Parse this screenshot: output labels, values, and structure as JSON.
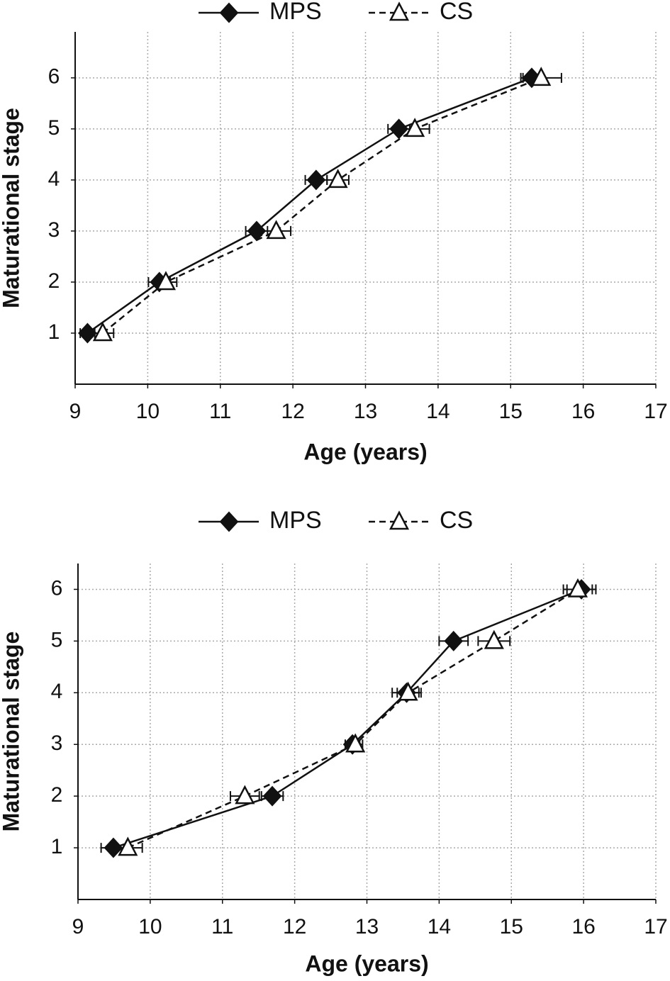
{
  "chart_data": [
    {
      "type": "line",
      "x_label": "Age (years)",
      "y_label": "Maturational stage",
      "xlim": [
        9,
        17
      ],
      "xticks": [
        9,
        10,
        11,
        12,
        13,
        14,
        15,
        16,
        17
      ],
      "ylim": [
        0,
        6.9
      ],
      "yticks": [
        1,
        2,
        3,
        4,
        5,
        6
      ],
      "grid": true,
      "series": [
        {
          "name": "MPS",
          "color": "#111111",
          "line_style": "solid",
          "marker": "diamond",
          "x": [
            9.17,
            10.16,
            11.5,
            12.32,
            13.46,
            15.29
          ],
          "xerr": [
            0.1,
            0.15,
            0.15,
            0.15,
            0.15,
            0.12
          ],
          "values": [
            1,
            2,
            3,
            4,
            5,
            6
          ]
        },
        {
          "name": "CS",
          "color": "#111111",
          "line_style": "dashed",
          "marker": "triangle",
          "x": [
            9.38,
            10.25,
            11.77,
            12.62,
            13.68,
            15.42
          ],
          "xerr": [
            0.15,
            0.15,
            0.2,
            0.15,
            0.2,
            0.28
          ],
          "values": [
            1,
            2,
            3,
            4,
            5,
            6
          ]
        }
      ]
    },
    {
      "type": "line",
      "x_label": "Age (years)",
      "y_label": "Maturational stage",
      "xlim": [
        9,
        17
      ],
      "xticks": [
        9,
        10,
        11,
        12,
        13,
        14,
        15,
        16,
        17
      ],
      "ylim": [
        0,
        6.5
      ],
      "yticks": [
        1,
        2,
        3,
        4,
        5,
        6
      ],
      "grid": true,
      "series": [
        {
          "name": "MPS",
          "color": "#111111",
          "line_style": "solid",
          "marker": "diamond",
          "x": [
            9.49,
            11.69,
            12.8,
            13.55,
            14.2,
            15.97
          ],
          "xerr": [
            0.17,
            0.15,
            0.1,
            0.2,
            0.2,
            0.2
          ],
          "values": [
            1,
            2,
            3,
            4,
            5,
            6
          ]
        },
        {
          "name": "CS",
          "color": "#111111",
          "line_style": "dashed",
          "marker": "triangle",
          "x": [
            9.69,
            11.31,
            12.84,
            13.57,
            14.76,
            15.92
          ],
          "xerr": [
            0.2,
            0.2,
            0.1,
            0.15,
            0.22,
            0.2
          ],
          "values": [
            1,
            2,
            3,
            4,
            5,
            6
          ]
        }
      ]
    }
  ]
}
